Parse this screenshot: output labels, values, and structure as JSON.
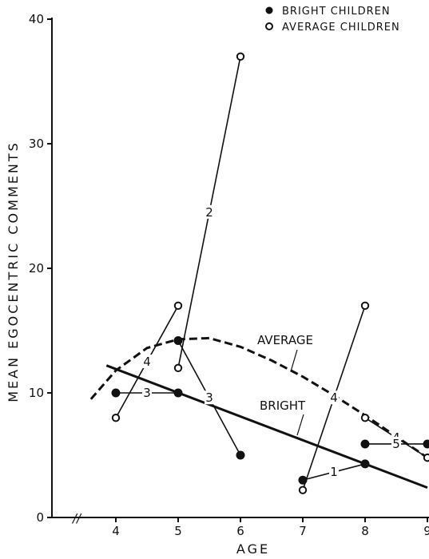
{
  "chart_data": {
    "type": "line",
    "title": "",
    "xlabel": "AGE",
    "ylabel": "MEAN EGOCENTRIC COMMENTS",
    "xlim": [
      3.3,
      9
    ],
    "ylim": [
      0,
      40
    ],
    "x_ticks": [
      "4",
      "5",
      "6",
      "7",
      "8",
      "9"
    ],
    "y_ticks": [
      "0",
      "10",
      "20",
      "30",
      "40"
    ],
    "axis_break": "//",
    "legend": {
      "position": "top-right",
      "entries": [
        {
          "marker": "filled-circle",
          "label": "BRIGHT CHILDREN"
        },
        {
          "marker": "open-circle",
          "label": "AVERAGE CHILDREN"
        }
      ]
    },
    "trend_lines": [
      {
        "label": "BRIGHT",
        "style": "solid",
        "points": [
          [
            3.85,
            12.2
          ],
          [
            9,
            2.4
          ]
        ]
      },
      {
        "label": "AVERAGE",
        "style": "dashed",
        "points": [
          [
            3.6,
            9.5
          ],
          [
            4.0,
            11.8
          ],
          [
            4.5,
            13.6
          ],
          [
            5.0,
            14.3
          ],
          [
            5.5,
            14.4
          ],
          [
            6.0,
            13.7
          ],
          [
            6.5,
            12.6
          ],
          [
            7.0,
            11.3
          ],
          [
            7.5,
            9.8
          ],
          [
            8.0,
            8.2
          ],
          [
            8.5,
            6.5
          ],
          [
            9.0,
            4.8
          ]
        ]
      }
    ],
    "series": [
      {
        "marker": "filled",
        "number": "3",
        "points": [
          [
            4,
            10.0
          ],
          [
            5,
            10.0
          ]
        ]
      },
      {
        "marker": "open",
        "number": "4",
        "points": [
          [
            4,
            8.0
          ],
          [
            5,
            17.0
          ]
        ]
      },
      {
        "marker": "open",
        "number": "2",
        "points": [
          [
            5,
            12.0
          ],
          [
            6,
            37.0
          ]
        ]
      },
      {
        "marker": "filled",
        "number": "3",
        "points": [
          [
            5,
            14.2
          ],
          [
            6,
            5.0
          ]
        ]
      },
      {
        "marker": "open",
        "number": "4",
        "points": [
          [
            7,
            2.2
          ],
          [
            8,
            17.0
          ]
        ]
      },
      {
        "marker": "filled",
        "number": "1",
        "points": [
          [
            7,
            3.0
          ],
          [
            8,
            4.3
          ]
        ]
      },
      {
        "marker": "open",
        "number": "4",
        "points": [
          [
            8,
            8.0
          ],
          [
            9,
            4.8
          ]
        ]
      },
      {
        "marker": "filled",
        "number": "5",
        "points": [
          [
            8,
            5.9
          ],
          [
            9,
            5.9
          ]
        ]
      }
    ]
  }
}
